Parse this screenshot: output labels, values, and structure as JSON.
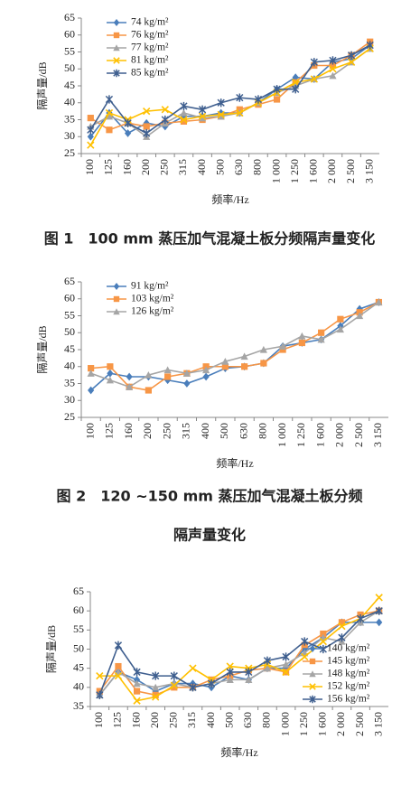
{
  "chart_data": [
    {
      "type": "line",
      "caption": [
        "图 1　100 mm 蒸压加气混凝土板分频隔声量变化"
      ],
      "y_label": "隔声量/dB",
      "x_label": "频率/Hz",
      "legend": "upper left",
      "categories": [
        "100",
        "125",
        "160",
        "200",
        "250",
        "315",
        "400",
        "500",
        "630",
        "800",
        "1 000",
        "1 250",
        "1 600",
        "2 000",
        "2 500",
        "3 150"
      ],
      "ylim": [
        25,
        65
      ],
      "yticks": [
        25,
        30,
        35,
        40,
        45,
        50,
        55,
        60,
        65
      ],
      "series": [
        {
          "name": "74 kg/m²",
          "color": "#4a7ebb",
          "marker": "diamond",
          "values": [
            30,
            37,
            31,
            34,
            33,
            36,
            36,
            37,
            37,
            40,
            44,
            47.5,
            47,
            52,
            53,
            57
          ]
        },
        {
          "name": "76 kg/m²",
          "color": "#f79646",
          "marker": "square",
          "values": [
            35.5,
            32,
            34,
            33,
            34,
            34.5,
            35,
            36,
            38,
            39.5,
            41,
            46,
            51,
            51,
            54,
            58
          ]
        },
        {
          "name": "77 kg/m²",
          "color": "#a5a5a5",
          "marker": "triangle",
          "values": [
            33,
            36,
            34,
            30,
            34,
            37,
            35.5,
            36,
            37,
            40,
            43,
            45,
            47,
            48,
            52,
            56
          ]
        },
        {
          "name": "81 kg/m²",
          "color": "#ffc000",
          "marker": "x",
          "values": [
            27.5,
            37,
            35,
            37.5,
            38,
            35,
            36,
            36.5,
            37,
            40,
            43,
            46,
            47,
            50,
            52,
            56
          ]
        },
        {
          "name": "85 kg/m²",
          "color": "#3f5f8f",
          "marker": "star",
          "values": [
            32,
            41,
            34,
            31,
            35,
            39,
            38,
            40,
            41.5,
            41,
            44,
            44,
            52,
            52.5,
            54,
            57
          ]
        }
      ]
    },
    {
      "type": "line",
      "caption": [
        "图 2　120 ~150 mm 蒸压加气混凝土板分频",
        "隔声量变化"
      ],
      "y_label": "隔声量/dB",
      "x_label": "频率/Hz",
      "legend": "upper left",
      "categories": [
        "100",
        "125",
        "160",
        "200",
        "250",
        "315",
        "400",
        "500",
        "630",
        "800",
        "1 000",
        "1 250",
        "1 600",
        "2 000",
        "2 500",
        "3 150"
      ],
      "ylim": [
        25,
        65
      ],
      "yticks": [
        25,
        30,
        35,
        40,
        45,
        50,
        55,
        60,
        65
      ],
      "series": [
        {
          "name": "91  kg/m²",
          "color": "#4a7ebb",
          "marker": "diamond",
          "values": [
            33,
            38,
            37,
            37,
            36,
            35,
            37,
            39.5,
            40,
            41,
            46,
            47,
            48,
            52,
            57,
            59
          ]
        },
        {
          "name": "103 kg/m²",
          "color": "#f79646",
          "marker": "square",
          "values": [
            39.5,
            40,
            34,
            33,
            37,
            38,
            40,
            40,
            40,
            41,
            45,
            47,
            50,
            54,
            56,
            59
          ]
        },
        {
          "name": "126 kg/m²",
          "color": "#a5a5a5",
          "marker": "triangle",
          "values": [
            38,
            36,
            34,
            37.5,
            39,
            38,
            39,
            41.5,
            43,
            45,
            46,
            49,
            48,
            51,
            55,
            59
          ]
        }
      ]
    },
    {
      "type": "line",
      "y_label": "隔声量/dB",
      "x_label": "频率/Hz",
      "legend": "lower right",
      "categories": [
        "100",
        "125",
        "160",
        "200",
        "250",
        "315",
        "400",
        "500",
        "630",
        "800",
        "1 000",
        "1 250",
        "1 600",
        "2 000",
        "2 500",
        "3 150"
      ],
      "ylim": [
        35,
        65
      ],
      "yticks": [
        35,
        40,
        45,
        50,
        55,
        60,
        65
      ],
      "series": [
        {
          "name": "140 kg/m²",
          "color": "#4a7ebb",
          "marker": "diamond",
          "values": [
            38,
            44,
            42,
            39,
            41,
            41,
            40,
            43,
            42,
            45,
            45,
            50,
            53,
            57,
            57,
            57
          ]
        },
        {
          "name": "145 kg/m²",
          "color": "#f79646",
          "marker": "square",
          "values": [
            39,
            45.5,
            39,
            38,
            40,
            40,
            42,
            43,
            44.5,
            45,
            44,
            51,
            54,
            57,
            59,
            60
          ]
        },
        {
          "name": "148 kg/m²",
          "color": "#a5a5a5",
          "marker": "triangle",
          "values": [
            38,
            44,
            41,
            40,
            41,
            40,
            41,
            42,
            42,
            45,
            46,
            49,
            53,
            52,
            57,
            60
          ]
        },
        {
          "name": "152 kg/m²",
          "color": "#ffc000",
          "marker": "x",
          "values": [
            43,
            43,
            36.5,
            37.5,
            40.5,
            45,
            42,
            45.5,
            45,
            46,
            44,
            48,
            52,
            56,
            58,
            63.5
          ]
        },
        {
          "name": "156 kg/m²",
          "color": "#3f5f8f",
          "marker": "star",
          "values": [
            38,
            51,
            44,
            43,
            43,
            40,
            41,
            44,
            44,
            47,
            48,
            52,
            50,
            53,
            58,
            60
          ]
        }
      ]
    }
  ]
}
